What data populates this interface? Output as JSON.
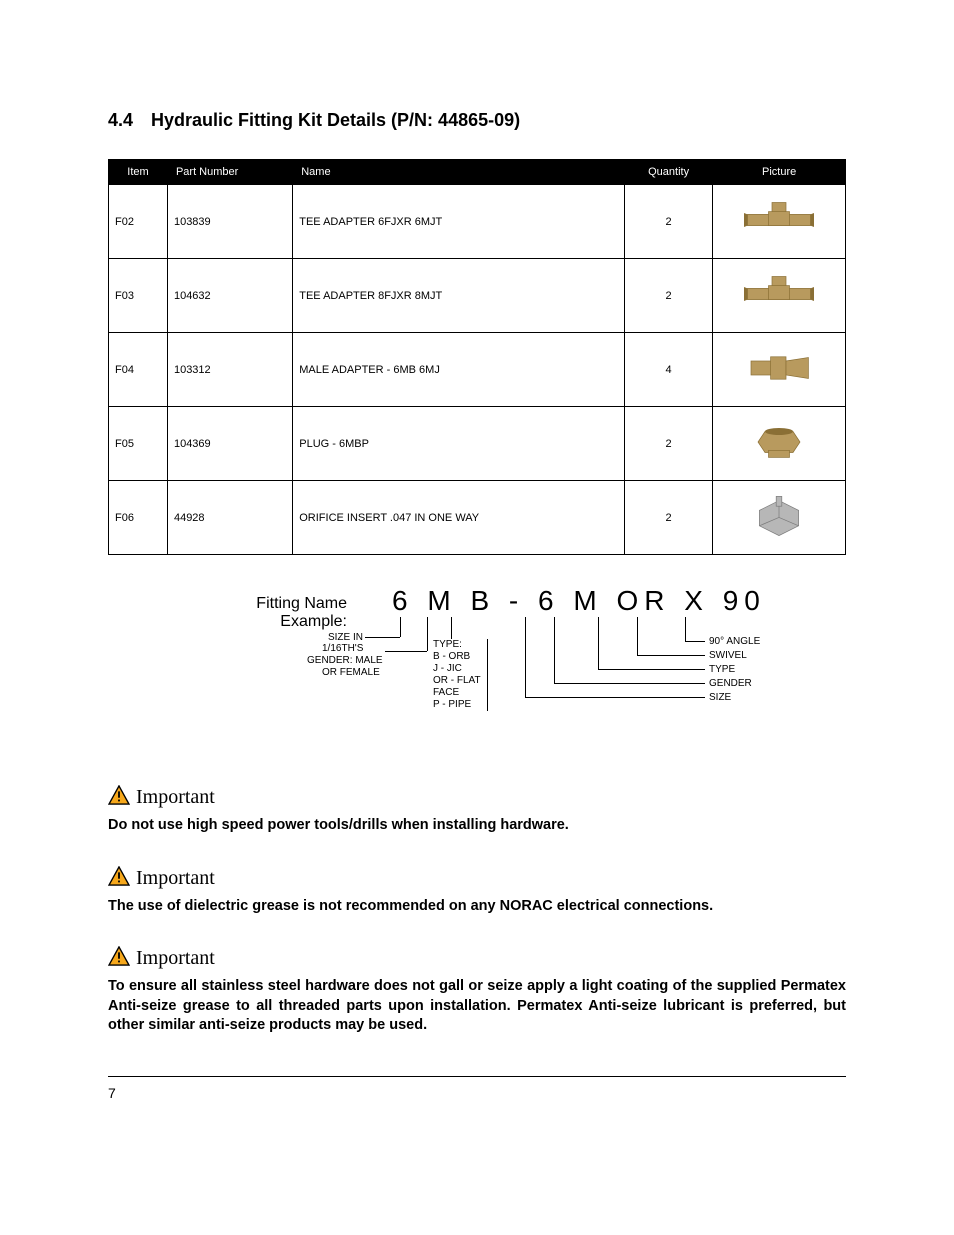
{
  "heading": {
    "number": "4.4",
    "title": "Hydraulic Fitting Kit Details (P/N: 44865-09)"
  },
  "table": {
    "columns": [
      "Item",
      "Part Number",
      "Name",
      "Quantity",
      "Picture"
    ],
    "col_widths_pct": [
      8,
      17,
      45,
      12,
      18
    ],
    "header_bg": "#000000",
    "header_fg": "#ffffff",
    "rows": [
      {
        "item": "F02",
        "pn": "103839",
        "name": "TEE ADAPTER 6FJXR 6MJT",
        "qty": "2",
        "pic": "tee"
      },
      {
        "item": "F03",
        "pn": "104632",
        "name": "TEE ADAPTER 8FJXR 8MJT",
        "qty": "2",
        "pic": "tee"
      },
      {
        "item": "F04",
        "pn": "103312",
        "name": "MALE ADAPTER -  6MB 6MJ",
        "qty": "4",
        "pic": "adapter"
      },
      {
        "item": "F05",
        "pn": "104369",
        "name": "PLUG - 6MBP",
        "qty": "2",
        "pic": "plug"
      },
      {
        "item": "F06",
        "pn": "44928",
        "name": "ORIFICE INSERT .047 IN ONE WAY",
        "qty": "2",
        "pic": "orifice"
      }
    ],
    "picture_colors": {
      "brass": "#b89a5e",
      "brass_dark": "#8a6f35",
      "steel": "#b7b7b7",
      "steel_dark": "#7a7a7a"
    }
  },
  "example": {
    "title_l1": "Fitting Name",
    "title_l2": "Example:",
    "code": "6 M B - 6 M OR X 90",
    "left_labels": {
      "size": "SIZE IN",
      "size_sub": "1/16TH'S",
      "gender": "GENDER: MALE",
      "gender_sub": "OR FEMALE",
      "type_head": "TYPE:",
      "type_lines": [
        "B - ORB",
        "J - JIC",
        "OR - FLAT",
        "FACE",
        "P - PIPE"
      ]
    },
    "right_labels": [
      "90° ANGLE",
      "SWIVEL",
      "TYPE",
      "GENDER",
      "SIZE"
    ]
  },
  "callouts": [
    {
      "label": "Important",
      "body": "Do not use high speed power tools/drills when installing hardware."
    },
    {
      "label": "Important",
      "body": "The use of dielectric grease is not recommended on any NORAC electrical connections."
    },
    {
      "label": "Important",
      "body": "To ensure all stainless steel hardware does not gall or seize apply a light coating of the supplied Permatex Anti-seize grease to all threaded parts upon installation. Permatex Anti-seize lubricant is preferred, but other similar anti-seize products may be used."
    }
  ],
  "icon_colors": {
    "triangle_fill": "#f6a81c",
    "triangle_stroke": "#000000",
    "bang": "#000000"
  },
  "page_number": "7"
}
